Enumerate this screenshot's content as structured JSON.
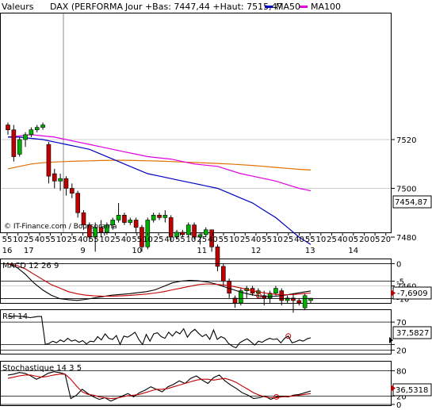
{
  "header": {
    "label_values": "Valeurs",
    "label_symbol": "DAX (PERFORMA",
    "label_quote": "Jour +Bas: 7447,44 +Haut: 7515,47",
    "legend_ma50": "MA50",
    "legend_ma100": "MA100"
  },
  "colors": {
    "up": "#00b000",
    "down": "#c00000",
    "ma50": "#0000c0",
    "ma100": "#e000e0",
    "ma200": "#e07000",
    "stoch_signal": "#c00000",
    "price_marker": "#ff0000"
  },
  "watermark": "© IT-Finance.com / Boursorama",
  "last_price_label": "7454,87",
  "chart_data": [
    {
      "type": "candlestick",
      "id": "price",
      "ylim": [
        7440,
        7530
      ],
      "y_ticks": [
        7460,
        7480,
        7500,
        7520
      ],
      "y_tick_labels": [
        "7460",
        "7480",
        "7500",
        "7520"
      ],
      "x_ticks": [
        "55",
        "10",
        "25",
        "40",
        "55",
        "10",
        "25",
        "40",
        "55",
        "10",
        "25",
        "40",
        "55",
        "10",
        "25",
        "40",
        "55",
        "10",
        "25",
        "40",
        "55",
        "10",
        "25",
        "40",
        "55",
        "10",
        "25",
        "40",
        "55",
        "10",
        "25",
        "40",
        "05",
        "20",
        "05",
        "20"
      ],
      "date_labels": [
        {
          "label": "16",
          "tick": 0
        },
        {
          "label": "17",
          "tick": 2
        },
        {
          "label": "9",
          "tick": 7
        },
        {
          "label": "10",
          "tick": 12
        },
        {
          "label": "11",
          "tick": 18
        },
        {
          "label": "12",
          "tick": 23
        },
        {
          "label": "13",
          "tick": 28
        },
        {
          "label": "14",
          "tick": 32
        }
      ],
      "candles": [
        {
          "o": 7526,
          "h": 7527,
          "l": 7522,
          "c": 7524
        },
        {
          "o": 7524,
          "h": 7526,
          "l": 7511,
          "c": 7513
        },
        {
          "o": 7514,
          "h": 7521,
          "l": 7513,
          "c": 7520
        },
        {
          "o": 7520,
          "h": 7523,
          "l": 7517,
          "c": 7522
        },
        {
          "o": 7522,
          "h": 7525,
          "l": 7521,
          "c": 7524
        },
        {
          "o": 7524,
          "h": 7526,
          "l": 7523,
          "c": 7525
        },
        {
          "o": 7525,
          "h": 7527,
          "l": 7524,
          "c": 7526
        },
        {
          "o": 7518,
          "h": 7519,
          "l": 7502,
          "c": 7505
        },
        {
          "o": 7506,
          "h": 7508,
          "l": 7500,
          "c": 7503
        },
        {
          "o": 7503,
          "h": 7506,
          "l": 7499,
          "c": 7504
        },
        {
          "o": 7504,
          "h": 7505,
          "l": 7497,
          "c": 7500
        },
        {
          "o": 7500,
          "h": 7502,
          "l": 7496,
          "c": 7498
        },
        {
          "o": 7498,
          "h": 7499,
          "l": 7488,
          "c": 7490
        },
        {
          "o": 7490,
          "h": 7491,
          "l": 7483,
          "c": 7485
        },
        {
          "o": 7485,
          "h": 7486,
          "l": 7478,
          "c": 7480
        },
        {
          "o": 7480,
          "h": 7486,
          "l": 7474,
          "c": 7484
        },
        {
          "o": 7484,
          "h": 7487,
          "l": 7480,
          "c": 7482
        },
        {
          "o": 7482,
          "h": 7486,
          "l": 7481,
          "c": 7485
        },
        {
          "o": 7485,
          "h": 7488,
          "l": 7483,
          "c": 7487
        },
        {
          "o": 7487,
          "h": 7494,
          "l": 7486,
          "c": 7489
        },
        {
          "o": 7489,
          "h": 7490,
          "l": 7485,
          "c": 7486
        },
        {
          "o": 7486,
          "h": 7488,
          "l": 7485,
          "c": 7487
        },
        {
          "o": 7487,
          "h": 7488,
          "l": 7482,
          "c": 7484
        },
        {
          "o": 7484,
          "h": 7485,
          "l": 7474,
          "c": 7476
        },
        {
          "o": 7476,
          "h": 7488,
          "l": 7475,
          "c": 7487
        },
        {
          "o": 7487,
          "h": 7490,
          "l": 7486,
          "c": 7489
        },
        {
          "o": 7489,
          "h": 7490,
          "l": 7487,
          "c": 7488
        },
        {
          "o": 7488,
          "h": 7491,
          "l": 7486,
          "c": 7489
        },
        {
          "o": 7488,
          "h": 7489,
          "l": 7478,
          "c": 7480
        },
        {
          "o": 7480,
          "h": 7483,
          "l": 7479,
          "c": 7482
        },
        {
          "o": 7482,
          "h": 7483,
          "l": 7480,
          "c": 7481
        },
        {
          "o": 7481,
          "h": 7486,
          "l": 7480,
          "c": 7485
        },
        {
          "o": 7485,
          "h": 7486,
          "l": 7479,
          "c": 7480
        },
        {
          "o": 7480,
          "h": 7482,
          "l": 7477,
          "c": 7481
        },
        {
          "o": 7481,
          "h": 7484,
          "l": 7480,
          "c": 7483
        },
        {
          "o": 7483,
          "h": 7483,
          "l": 7474,
          "c": 7476
        },
        {
          "o": 7476,
          "h": 7477,
          "l": 7466,
          "c": 7468
        },
        {
          "o": 7468,
          "h": 7469,
          "l": 7460,
          "c": 7462
        },
        {
          "o": 7462,
          "h": 7463,
          "l": 7455,
          "c": 7457
        },
        {
          "o": 7455,
          "h": 7456,
          "l": 7451,
          "c": 7453
        },
        {
          "o": 7453,
          "h": 7459,
          "l": 7452,
          "c": 7458
        },
        {
          "o": 7458,
          "h": 7460,
          "l": 7455,
          "c": 7459
        },
        {
          "o": 7459,
          "h": 7460,
          "l": 7456,
          "c": 7457
        },
        {
          "o": 7457,
          "h": 7459,
          "l": 7455,
          "c": 7458
        },
        {
          "o": 7456,
          "h": 7458,
          "l": 7452,
          "c": 7455
        },
        {
          "o": 7455,
          "h": 7458,
          "l": 7453,
          "c": 7457
        },
        {
          "o": 7457,
          "h": 7460,
          "l": 7456,
          "c": 7459
        },
        {
          "o": 7458,
          "h": 7459,
          "l": 7452,
          "c": 7454
        },
        {
          "o": 7454,
          "h": 7456,
          "l": 7453,
          "c": 7455
        },
        {
          "o": 7455,
          "h": 7457,
          "l": 7449,
          "c": 7454
        },
        {
          "o": 7454,
          "h": 7455,
          "l": 7452,
          "c": 7453
        },
        {
          "o": 7451,
          "h": 7457,
          "l": 7450,
          "c": 7456
        },
        {
          "o": 7454,
          "h": 7455,
          "l": 7453,
          "c": 7454.87
        }
      ],
      "ma50": [
        7521,
        7521,
        7520.5,
        7520,
        7519,
        7518,
        7517,
        7516,
        7514,
        7512,
        7510,
        7508,
        7506,
        7505,
        7504,
        7503,
        7502,
        7501,
        7500,
        7498,
        7496,
        7494,
        7491,
        7488,
        7484,
        7480,
        7477
      ],
      "ma100": [
        7521,
        7521.5,
        7522,
        7521.5,
        7521,
        7520,
        7519,
        7518,
        7517,
        7516,
        7515,
        7514,
        7513,
        7512.5,
        7512,
        7511,
        7510,
        7509.5,
        7509,
        7507.5,
        7506,
        7505,
        7504,
        7503,
        7501.5,
        7500,
        7499
      ],
      "ma200": [
        7508,
        7509,
        7510,
        7510.5,
        7510.8,
        7511,
        7511.2,
        7511.3,
        7511.4,
        7511.5,
        7511.5,
        7511.4,
        7511.3,
        7511.2,
        7511,
        7510.8,
        7510.6,
        7510.4,
        7510.2,
        7510,
        7509.7,
        7509.4,
        7509,
        7508.6,
        7508.2,
        7507.8,
        7507.5
      ]
    },
    {
      "type": "line",
      "id": "macd",
      "title": "MACD 12 26 9",
      "ylim": [
        -11,
        1
      ],
      "y_ticks": [
        0,
        -5,
        -10
      ],
      "y_tick_labels": [
        "0",
        "-5",
        "-10"
      ],
      "value_label": "-7,6909",
      "series": [
        {
          "values": [
            0,
            -1,
            -3,
            -5.5,
            -7.5,
            -9,
            -10,
            -10.3,
            -10.5,
            -10.2,
            -9.8,
            -9.4,
            -9,
            -8.8,
            -8.6,
            -8.3,
            -8,
            -7.5,
            -6.5,
            -5.5,
            -5,
            -4.8,
            -4.9,
            -5.2,
            -5.8,
            -6.6,
            -7.4,
            -8.2,
            -8.8,
            -9.2,
            -9.4,
            -9.3,
            -9,
            -8.6,
            -8.2,
            -7.8
          ]
        },
        {
          "values": [
            0,
            -0.5,
            -1.5,
            -3,
            -4.5,
            -6,
            -7,
            -8,
            -8.6,
            -9,
            -9.2,
            -9.3,
            -9.3,
            -9.2,
            -9.1,
            -8.9,
            -8.7,
            -8.4,
            -8,
            -7.5,
            -7,
            -6.5,
            -6,
            -5.8,
            -5.9,
            -6.1,
            -6.5,
            -7,
            -7.6,
            -8.1,
            -8.5,
            -8.8,
            -8.9,
            -8.8,
            -8.6,
            -8.4
          ]
        }
      ]
    },
    {
      "type": "line",
      "id": "rsi",
      "title": "RSI 14",
      "ylim": [
        15,
        90
      ],
      "y_ticks": [
        70,
        30,
        20
      ],
      "y_tick_labels": [
        "70",
        "",
        "20"
      ],
      "value_label": "37,5827",
      "series": [
        {
          "values": [
            80,
            80,
            81,
            80,
            80,
            79,
            78,
            79,
            80,
            80,
            30,
            32,
            36,
            33,
            38,
            35,
            41,
            36,
            38,
            34,
            37,
            31,
            36,
            35,
            44,
            38,
            49,
            41,
            39,
            46,
            30,
            45,
            43,
            47,
            52,
            39,
            30,
            48,
            36,
            49,
            51,
            44,
            41,
            52,
            45,
            53,
            49,
            58,
            43,
            52,
            57,
            50,
            44,
            48,
            39,
            56,
            39,
            44,
            41,
            32,
            27,
            24,
            33,
            37,
            40,
            35,
            29,
            36,
            34,
            38,
            41,
            39,
            40,
            33,
            41,
            45,
            33,
            35,
            38,
            36,
            40,
            42
          ]
        }
      ]
    },
    {
      "type": "line",
      "id": "stoch",
      "title": "Stochastique 14 3 5",
      "ylim": [
        0,
        100
      ],
      "y_ticks": [
        80,
        20,
        0
      ],
      "y_tick_labels": [
        "80",
        "20",
        "0"
      ],
      "value_label": "36,5318",
      "series": [
        {
          "values": [
            70,
            72,
            76,
            74,
            68,
            60,
            66,
            74,
            78,
            76,
            72,
            14,
            22,
            36,
            26,
            18,
            12,
            16,
            8,
            14,
            20,
            26,
            18,
            28,
            34,
            42,
            36,
            30,
            42,
            48,
            56,
            50,
            62,
            68,
            58,
            50,
            64,
            70,
            56,
            46,
            38,
            28,
            22,
            14,
            16,
            20,
            12,
            18,
            20,
            18,
            22,
            24,
            28,
            32
          ]
        },
        {
          "values": [
            62,
            65,
            68,
            70,
            70,
            67,
            65,
            67,
            70,
            72,
            72,
            60,
            44,
            30,
            24,
            22,
            18,
            16,
            14,
            15,
            18,
            21,
            22,
            24,
            28,
            32,
            36,
            36,
            38,
            42,
            46,
            50,
            54,
            58,
            60,
            60,
            58,
            60,
            62,
            58,
            52,
            44,
            36,
            28,
            22,
            18,
            16,
            16,
            18,
            19,
            20,
            22,
            24,
            26
          ]
        }
      ]
    }
  ]
}
